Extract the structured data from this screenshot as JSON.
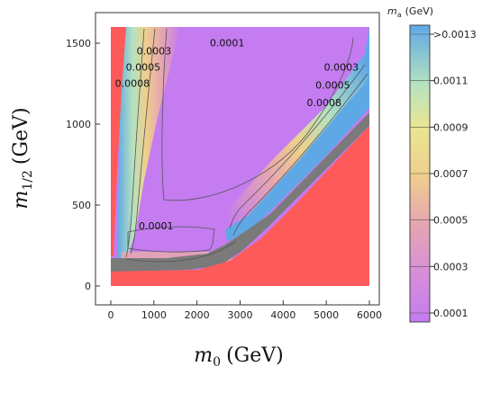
{
  "chart_data": {
    "type": "heatmap",
    "title": "",
    "xlabel": "m0 (GeV)",
    "ylabel": "m1/2 (GeV)",
    "xlabel_main": "m",
    "xlabel_sub": "0",
    "xlabel_unit": "(GeV)",
    "ylabel_main": "m",
    "ylabel_sub": "1/2",
    "ylabel_unit": "(GeV)",
    "xlim": [
      0,
      6000
    ],
    "ylim": [
      0,
      1600
    ],
    "x_ticks": [
      0,
      1000,
      2000,
      3000,
      4000,
      5000,
      6000
    ],
    "y_ticks": [
      0,
      500,
      1000,
      1500
    ],
    "colorbar": {
      "title_main": "m",
      "title_sub": "a",
      "title_unit": "(GeV)",
      "ticks": [
        "0.0001",
        "0.0003",
        "0.0005",
        "0.0007",
        "0.0009",
        "0.0011",
        ">0.0013"
      ],
      "colors": [
        "#c47cf0",
        "#d68ed9",
        "#e6a6b0",
        "#efd08c",
        "#e9e694",
        "#b6e2c0",
        "#5fa8e6"
      ]
    },
    "regions": [
      {
        "name": "excluded",
        "color": "#ff5a5a"
      },
      {
        "name": "boundary",
        "color": "#7a7a7a"
      }
    ],
    "contours": [
      {
        "label": "0.0001",
        "x": 2700,
        "y": 1480
      },
      {
        "label": "0.0003",
        "x": 1000,
        "y": 1430
      },
      {
        "label": "0.0005",
        "x": 750,
        "y": 1330
      },
      {
        "label": "0.0008",
        "x": 500,
        "y": 1230
      },
      {
        "label": "0.0003",
        "x": 5350,
        "y": 1330
      },
      {
        "label": "0.0005",
        "x": 5150,
        "y": 1220
      },
      {
        "label": "0.0008",
        "x": 4950,
        "y": 1110
      },
      {
        "label": "0.0001",
        "x": 1050,
        "y": 350
      }
    ]
  }
}
